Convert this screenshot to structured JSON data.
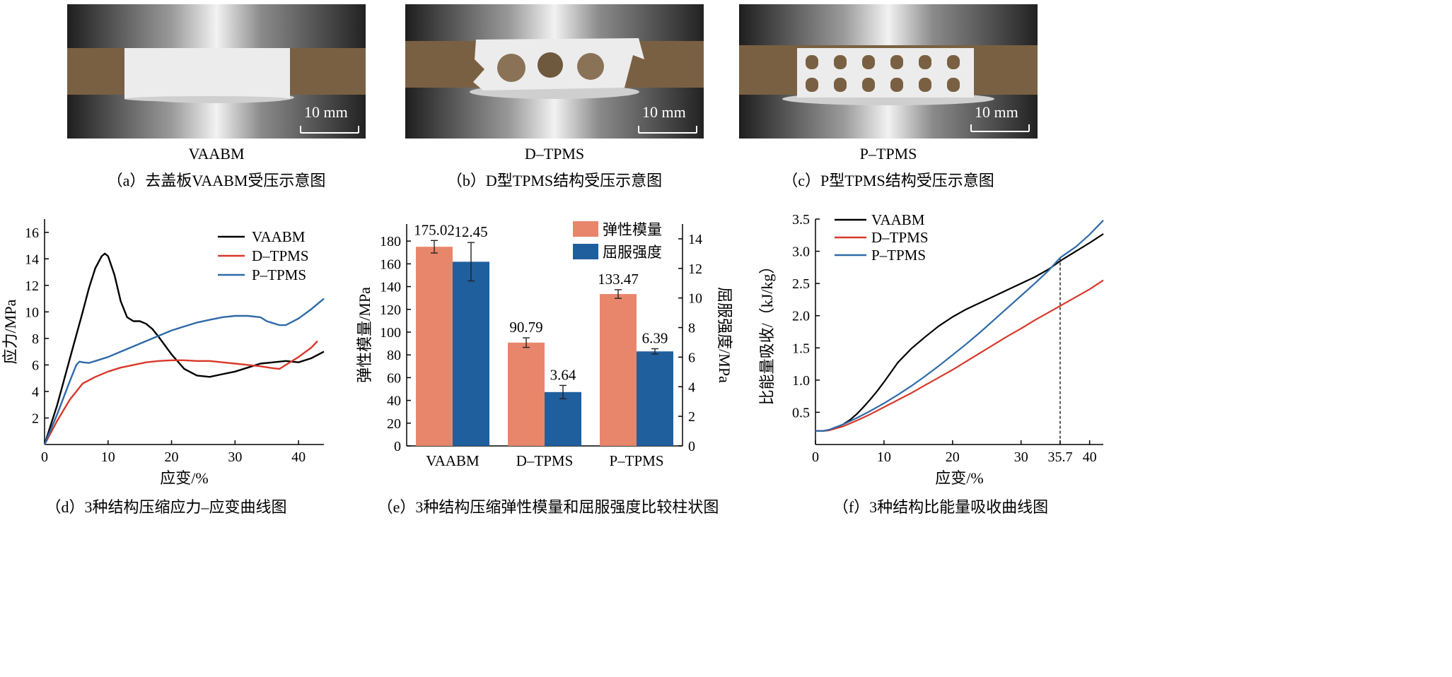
{
  "photos": [
    {
      "specimen": "VAABM",
      "scale_bar": "10 mm",
      "caption": "（a）去盖板VAABM受压示意图"
    },
    {
      "specimen": "D–TPMS",
      "scale_bar": "10 mm",
      "caption": "（b）D型TPMS结构受压示意图"
    },
    {
      "specimen": "P–TPMS",
      "scale_bar": "10 mm",
      "caption": "（c）P型TPMS结构受压示意图"
    }
  ],
  "colors": {
    "vaabm": "#000000",
    "d_tpms": "#d8382a",
    "p_tpms": "#2e6aa8",
    "elastic_bar": "#e8866b",
    "yield_bar": "#1f5f9e"
  },
  "chart_data": [
    {
      "type": "line",
      "caption": "（d）3种结构压缩应力–应变曲线图",
      "xlabel": "应变/%",
      "ylabel": "应力/MPa",
      "xlim": [
        0,
        44
      ],
      "ylim": [
        0,
        17
      ],
      "xticks": [
        0,
        10,
        20,
        30,
        40
      ],
      "yticks": [
        2,
        4,
        6,
        8,
        10,
        12,
        14,
        16
      ],
      "legend_position": "top-right",
      "series": [
        {
          "name": "VAABM",
          "color": "#000000",
          "x": [
            0,
            2,
            4,
            6,
            7,
            8,
            9,
            9.5,
            10,
            11,
            12,
            13,
            14,
            15,
            16,
            17,
            18,
            20,
            22,
            24,
            26,
            28,
            30,
            32,
            34,
            36,
            38,
            40,
            42,
            44
          ],
          "y": [
            0,
            3,
            6.5,
            10,
            11.8,
            13.3,
            14.2,
            14.4,
            14.2,
            12.8,
            10.8,
            9.6,
            9.3,
            9.3,
            9.1,
            8.7,
            8.1,
            6.8,
            5.7,
            5.2,
            5.1,
            5.3,
            5.5,
            5.8,
            6.1,
            6.2,
            6.3,
            6.2,
            6.5,
            7.0
          ]
        },
        {
          "name": "D–TPMS",
          "color": "#d8382a",
          "x": [
            0,
            2,
            4,
            6,
            8,
            10,
            12,
            14,
            16,
            18,
            20,
            22,
            24,
            26,
            28,
            30,
            32,
            34,
            36,
            37,
            38,
            40,
            42,
            43
          ],
          "y": [
            0,
            1.8,
            3.4,
            4.6,
            5.1,
            5.5,
            5.8,
            6.0,
            6.2,
            6.3,
            6.35,
            6.35,
            6.3,
            6.3,
            6.2,
            6.1,
            6.0,
            5.9,
            5.75,
            5.7,
            6.0,
            6.6,
            7.3,
            7.8
          ]
        },
        {
          "name": "P–TPMS",
          "color": "#2e6aa8",
          "x": [
            0,
            2,
            4,
            5,
            5.5,
            6,
            7,
            8,
            10,
            12,
            14,
            16,
            18,
            20,
            22,
            24,
            26,
            28,
            30,
            32,
            34,
            35,
            37,
            38,
            40,
            42,
            44
          ],
          "y": [
            0,
            2.3,
            4.8,
            6.0,
            6.25,
            6.2,
            6.15,
            6.3,
            6.6,
            7.0,
            7.4,
            7.8,
            8.2,
            8.6,
            8.9,
            9.2,
            9.4,
            9.6,
            9.7,
            9.7,
            9.6,
            9.3,
            9.0,
            9.0,
            9.5,
            10.2,
            11.0
          ]
        }
      ]
    },
    {
      "type": "bar",
      "caption": "（e）3种结构压缩弹性模量和屈服强度比较柱状图",
      "categories": [
        "VAABM",
        "D–TPMS",
        "P–TPMS"
      ],
      "ylabel": "弹性模量/MPa",
      "y2label": "屈服强度/MPa",
      "ylim": [
        0,
        195
      ],
      "y2lim": [
        0,
        15
      ],
      "yticks": [
        0,
        20,
        40,
        60,
        80,
        100,
        120,
        140,
        160,
        180
      ],
      "y2ticks": [
        0,
        2,
        4,
        6,
        8,
        10,
        12,
        14
      ],
      "legend_position": "top-right",
      "series": [
        {
          "name": "弹性模量",
          "axis": "left",
          "color": "#e8866b",
          "values": [
            175.02,
            90.79,
            133.47
          ],
          "labels": [
            "175.02",
            "90.79",
            "133.47"
          ],
          "errors": [
            5.5,
            4.2,
            3.8
          ]
        },
        {
          "name": "屈服强度",
          "axis": "right",
          "color": "#1f5f9e",
          "values": [
            12.45,
            3.64,
            6.39
          ],
          "labels": [
            "12.45",
            "3.64",
            "6.39"
          ],
          "errors": [
            1.3,
            0.45,
            0.18
          ]
        }
      ]
    },
    {
      "type": "line",
      "caption": "（f）3种结构比能量吸收曲线图",
      "xlabel": "应变/%",
      "ylabel": "比能量吸收/（kJ/kg）",
      "xlim": [
        0,
        42
      ],
      "ylim": [
        0,
        3.5
      ],
      "xticks": [
        0,
        10,
        20,
        30,
        35.7,
        40
      ],
      "yticks": [
        0.5,
        1.0,
        1.5,
        2.0,
        2.5,
        3.0,
        3.5
      ],
      "ytick_labels": [
        "0.5",
        "1.0",
        "1.5",
        "2.0",
        "2.5",
        "3.0",
        "3.5"
      ],
      "reference_line_x": 35.7,
      "legend_position": "top-left",
      "series": [
        {
          "name": "VAABM",
          "color": "#000000",
          "x": [
            0,
            1,
            2,
            3,
            4,
            5,
            6,
            7,
            8,
            9,
            10,
            12,
            14,
            16,
            18,
            20,
            22,
            24,
            26,
            28,
            30,
            32,
            34,
            36,
            38,
            40,
            42
          ],
          "y": [
            0.21,
            0.21,
            0.22,
            0.26,
            0.31,
            0.38,
            0.47,
            0.58,
            0.7,
            0.83,
            0.97,
            1.27,
            1.49,
            1.67,
            1.84,
            1.98,
            2.1,
            2.2,
            2.3,
            2.4,
            2.5,
            2.6,
            2.72,
            2.87,
            3.0,
            3.13,
            3.27
          ]
        },
        {
          "name": "D–TPMS",
          "color": "#d8382a",
          "x": [
            0,
            1,
            2,
            4,
            6,
            8,
            10,
            12,
            14,
            16,
            18,
            20,
            22,
            24,
            26,
            28,
            30,
            32,
            34,
            36,
            38,
            40,
            42
          ],
          "y": [
            0.21,
            0.21,
            0.22,
            0.28,
            0.37,
            0.47,
            0.58,
            0.69,
            0.8,
            0.92,
            1.04,
            1.16,
            1.29,
            1.42,
            1.55,
            1.68,
            1.8,
            1.93,
            2.05,
            2.17,
            2.29,
            2.41,
            2.55
          ]
        },
        {
          "name": "P–TPMS",
          "color": "#2e6aa8",
          "x": [
            0,
            1,
            2,
            4,
            6,
            8,
            10,
            12,
            14,
            16,
            18,
            20,
            22,
            24,
            26,
            28,
            30,
            32,
            34,
            35.7,
            38,
            40,
            42
          ],
          "y": [
            0.21,
            0.21,
            0.23,
            0.31,
            0.41,
            0.52,
            0.64,
            0.77,
            0.91,
            1.06,
            1.22,
            1.39,
            1.56,
            1.74,
            1.93,
            2.12,
            2.31,
            2.5,
            2.7,
            2.9,
            3.07,
            3.26,
            3.48
          ]
        }
      ]
    }
  ]
}
